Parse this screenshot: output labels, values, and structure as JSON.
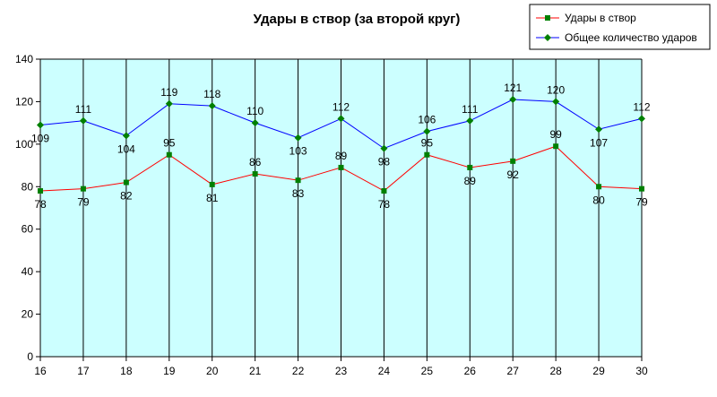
{
  "chart_data": {
    "type": "line",
    "title": "Удары в створ (за второй круг)",
    "categories": [
      "16",
      "17",
      "18",
      "19",
      "20",
      "21",
      "22",
      "23",
      "24",
      "25",
      "26",
      "27",
      "28",
      "29",
      "30"
    ],
    "ylim": [
      0,
      140
    ],
    "yticks": [
      0,
      20,
      40,
      60,
      80,
      100,
      120,
      140
    ],
    "grid": "vertical lines at every category",
    "legend_position": "top-right",
    "plot_background": "#ccffff",
    "series": [
      {
        "name": "Удары в створ",
        "values": [
          78,
          79,
          82,
          95,
          81,
          86,
          83,
          89,
          78,
          95,
          89,
          92,
          99,
          80,
          79
        ],
        "line_color": "#ff0000",
        "marker_color": "#008000",
        "marker": "square"
      },
      {
        "name": "Общее количество ударов",
        "values": [
          109,
          111,
          104,
          119,
          118,
          110,
          103,
          112,
          98,
          106,
          111,
          121,
          120,
          107,
          112
        ],
        "line_color": "#0000ff",
        "marker_color": "#008000",
        "marker": "diamond"
      }
    ]
  }
}
